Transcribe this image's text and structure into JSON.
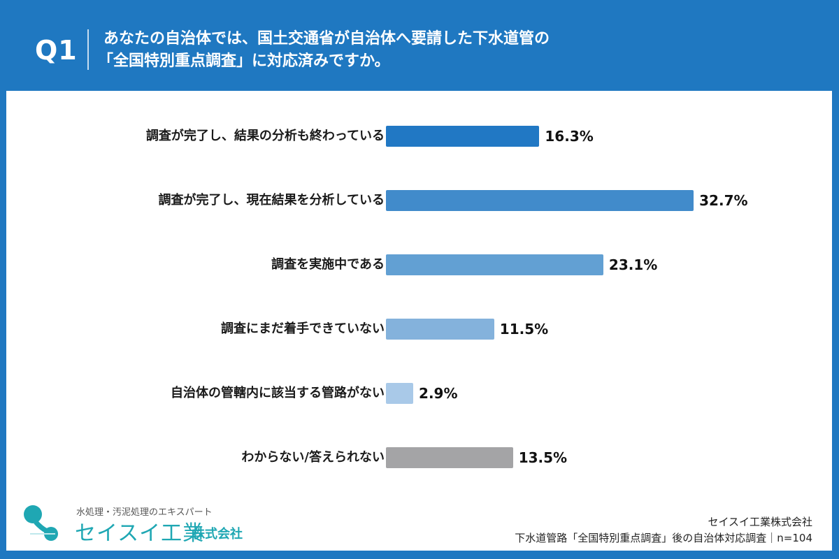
{
  "header": {
    "question_number": "Q1",
    "question_line1": "あなたの自治体では、国土交通省が自治体へ要請した下水道管の",
    "question_line2": "「全国特別重点調査」に対応済みですか。",
    "background_color": "#1f78c1"
  },
  "chart_data": {
    "type": "bar",
    "orientation": "horizontal",
    "title": "あなたの自治体では、国土交通省が自治体へ要請した下水道管の「全国特別重点調査」に対応済みですか。",
    "categories": [
      "調査が完了し、結果の分析も終わっている",
      "調査が完了し、現在結果を分析している",
      "調査を実施中である",
      "調査にまだ着手できていない",
      "自治体の管轄内に該当する管路がない",
      "わからない/答えられない"
    ],
    "values": [
      16.3,
      32.7,
      23.1,
      11.5,
      2.9,
      13.5
    ],
    "value_labels": [
      "16.3%",
      "32.7%",
      "23.1%",
      "11.5%",
      "2.9%",
      "13.5%"
    ],
    "colors": [
      "#2178c4",
      "#418bcb",
      "#62a0d3",
      "#84b2dc",
      "#a9c9e8",
      "#a4a4a6"
    ],
    "unit": "%",
    "xlabel": "",
    "ylabel": "",
    "grid": false,
    "legend": false,
    "n": 104
  },
  "footer": {
    "logo_tagline": "水処理・汚泥処理のエキスパート",
    "logo_name": "セイスイ工業",
    "logo_suffix": "株式会社",
    "credit_company": "セイスイ工業株式会社",
    "credit_survey": "下水道管路「全国特別重点調査」後の自治体対応調査｜n=104"
  }
}
